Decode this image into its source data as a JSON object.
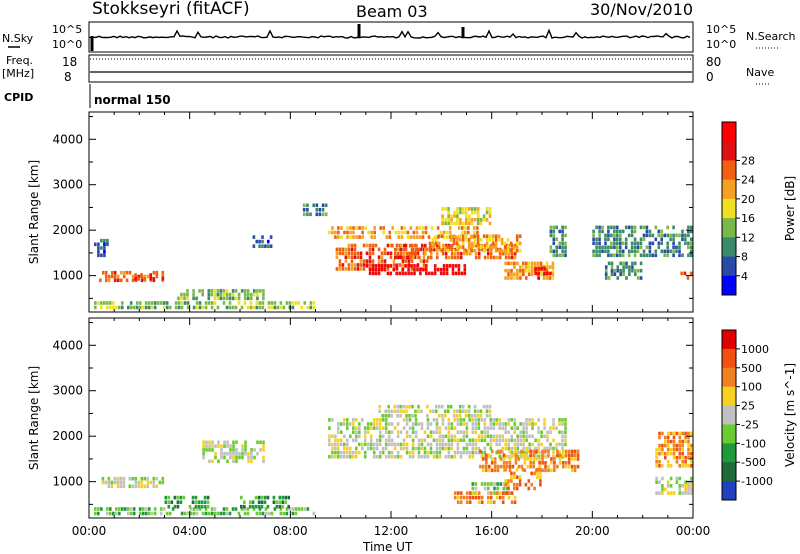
{
  "header": {
    "station": "Stokkseyri (fitACF)",
    "beam": "Beam 03",
    "date": "30/Nov/2010"
  },
  "top_panels": {
    "nsky_label": "N.Sky",
    "nsky_ticks": [
      "10^5",
      "10^0"
    ],
    "nsearch_label": "N.Search",
    "nsearch_ticks": [
      "10^5",
      "10^0"
    ],
    "freq_label": "Freq.",
    "freq_unit": "[MHz]",
    "freq_ticks": [
      "18",
      "8"
    ],
    "nave_label": "Nave",
    "nave_ticks": [
      "80",
      "0"
    ],
    "cpid_label": "CPID",
    "cpid_value": "normal 150"
  },
  "chart_data": [
    {
      "type": "heatmap",
      "panel": "power",
      "ylabel": "Slant Range [km]",
      "yticks": [
        1000,
        2000,
        3000,
        4000
      ],
      "ylim": [
        200,
        4600
      ],
      "xlabel": "",
      "xticks": [
        "00:00",
        "04:00",
        "08:00",
        "12:00",
        "16:00",
        "20:00",
        "00:00"
      ],
      "xlim_hours": [
        0,
        24
      ],
      "colorbar": {
        "label": "Power [dB]",
        "ticks": [
          "4",
          "8",
          "12",
          "16",
          "20",
          "24",
          "28"
        ],
        "colors": [
          "#0000ff",
          "#2a4aa8",
          "#3a8a6a",
          "#7ab84a",
          "#f0e020",
          "#f5a020",
          "#f06010",
          "#e01010",
          "#ff0000"
        ]
      },
      "regions": [
        {
          "t": [
            0.2,
            9
          ],
          "r": [
            250,
            450
          ],
          "level": 3
        },
        {
          "t": [
            0.4,
            3.0
          ],
          "r": [
            850,
            1100
          ],
          "level": 6
        },
        {
          "t": [
            1.8,
            3.0
          ],
          "r": [
            880,
            1050
          ],
          "level": 7
        },
        {
          "t": [
            0.2,
            0.8
          ],
          "r": [
            1400,
            1800
          ],
          "level": 1
        },
        {
          "t": [
            3.5,
            7.0
          ],
          "r": [
            450,
            700
          ],
          "level": 3
        },
        {
          "t": [
            6.5,
            7.3
          ],
          "r": [
            1600,
            1900
          ],
          "level": 1
        },
        {
          "t": [
            8.5,
            9.5
          ],
          "r": [
            2300,
            2600
          ],
          "level": 2
        },
        {
          "t": [
            9.5,
            15.5
          ],
          "r": [
            1800,
            2100
          ],
          "level": 5
        },
        {
          "t": [
            9.8,
            13.5
          ],
          "r": [
            1100,
            1700
          ],
          "level": 6
        },
        {
          "t": [
            11.0,
            15.0
          ],
          "r": [
            1000,
            1250
          ],
          "level": 8
        },
        {
          "t": [
            12.0,
            17.0
          ],
          "r": [
            1350,
            1700
          ],
          "level": 6
        },
        {
          "t": [
            13.5,
            17.2
          ],
          "r": [
            1500,
            1900
          ],
          "level": 5
        },
        {
          "t": [
            14.0,
            16.0
          ],
          "r": [
            2100,
            2500
          ],
          "level": 4
        },
        {
          "t": [
            16.5,
            18.5
          ],
          "r": [
            900,
            1300
          ],
          "level": 5
        },
        {
          "t": [
            17.7,
            18.4
          ],
          "r": [
            900,
            1200
          ],
          "level": 8
        },
        {
          "t": [
            18.3,
            19.0
          ],
          "r": [
            1400,
            2100
          ],
          "level": 2
        },
        {
          "t": [
            20.0,
            24.0
          ],
          "r": [
            1400,
            2100
          ],
          "level": 2
        },
        {
          "t": [
            23.5,
            24.0
          ],
          "r": [
            900,
            1100
          ],
          "level": 6
        },
        {
          "t": [
            20.5,
            22.0
          ],
          "r": [
            900,
            1300
          ],
          "level": 2
        }
      ]
    },
    {
      "type": "heatmap",
      "panel": "velocity",
      "ylabel": "Slant Range [km]",
      "yticks": [
        1000,
        2000,
        3000,
        4000
      ],
      "ylim": [
        200,
        4600
      ],
      "xlabel": "Time UT",
      "xticks": [
        "00:00",
        "04:00",
        "08:00",
        "12:00",
        "16:00",
        "20:00",
        "00:00"
      ],
      "xlim_hours": [
        0,
        24
      ],
      "colorbar": {
        "label": "Velocity [m s^-1]",
        "ticks": [
          "1000",
          "500",
          "100",
          "25",
          "-25",
          "-100",
          "-500",
          "-1000"
        ],
        "colors": [
          "#2040c0",
          "#1f6a3a",
          "#1f9a3a",
          "#6acc30",
          "#c0c0c0",
          "#f8d020",
          "#f08020",
          "#f05010",
          "#e00000"
        ]
      },
      "regions": [
        {
          "t": [
            0.2,
            9
          ],
          "r": [
            250,
            450
          ],
          "level": 3
        },
        {
          "t": [
            0.5,
            3.0
          ],
          "r": [
            850,
            1100
          ],
          "level": 4
        },
        {
          "t": [
            4.5,
            7.0
          ],
          "r": [
            1400,
            1900
          ],
          "level": 4
        },
        {
          "t": [
            9.5,
            19.0
          ],
          "r": [
            1500,
            2400
          ],
          "level": 4
        },
        {
          "t": [
            11.5,
            16.0
          ],
          "r": [
            2400,
            2700
          ],
          "level": 4
        },
        {
          "t": [
            15.5,
            19.5
          ],
          "r": [
            1200,
            1700
          ],
          "level": 6
        },
        {
          "t": [
            15.2,
            16.8
          ],
          "r": [
            700,
            1000
          ],
          "level": 3
        },
        {
          "t": [
            14.5,
            17.0
          ],
          "r": [
            500,
            800
          ],
          "level": 6
        },
        {
          "t": [
            16.5,
            18.0
          ],
          "r": [
            800,
            1300
          ],
          "level": 6
        },
        {
          "t": [
            22.5,
            24.0
          ],
          "r": [
            1300,
            2100
          ],
          "level": 6
        },
        {
          "t": [
            22.5,
            24.0
          ],
          "r": [
            700,
            1100
          ],
          "level": 4
        },
        {
          "t": [
            3.0,
            4.8
          ],
          "r": [
            400,
            700
          ],
          "level": 2
        },
        {
          "t": [
            6.0,
            8.0
          ],
          "r": [
            400,
            700
          ],
          "level": 2
        }
      ]
    }
  ]
}
